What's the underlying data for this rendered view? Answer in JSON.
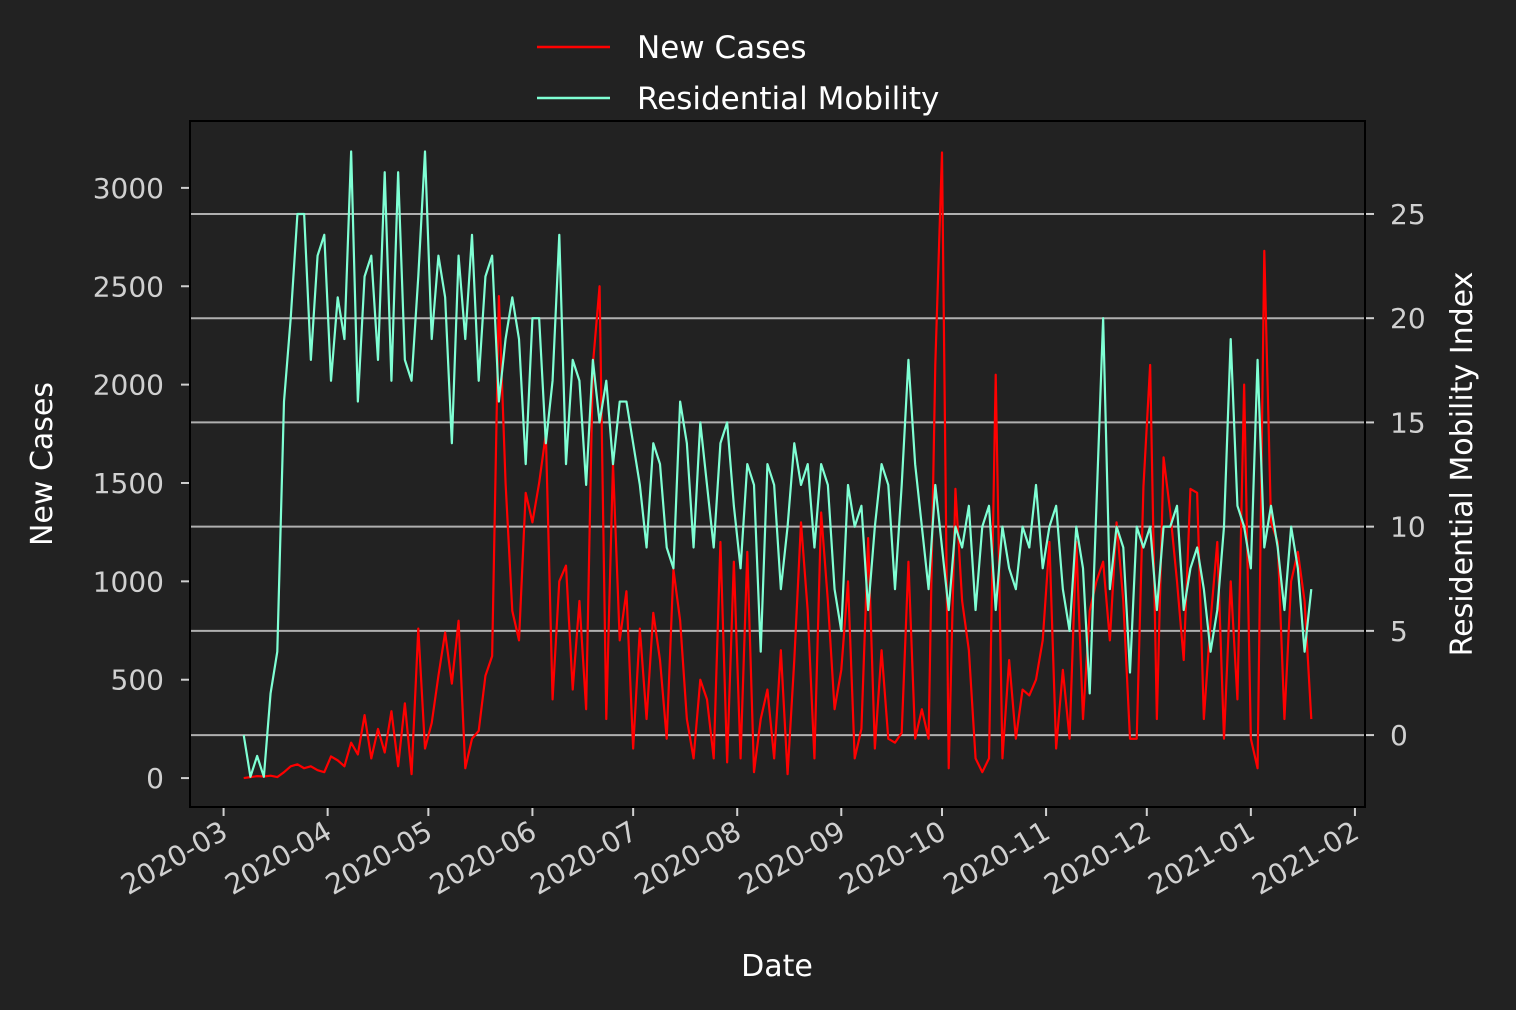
{
  "chart_data": {
    "type": "line",
    "x_label": "Date",
    "y_label": "New Cases",
    "y2_label": "Residential Mobility Index",
    "legend": "upper center",
    "grid": "y2",
    "x": [
      "2020-03-07",
      "2020-03-09",
      "2020-03-11",
      "2020-03-13",
      "2020-03-15",
      "2020-03-17",
      "2020-03-19",
      "2020-03-21",
      "2020-03-23",
      "2020-03-25",
      "2020-03-27",
      "2020-03-29",
      "2020-03-31",
      "2020-04-02",
      "2020-04-04",
      "2020-04-06",
      "2020-04-08",
      "2020-04-10",
      "2020-04-12",
      "2020-04-14",
      "2020-04-16",
      "2020-04-18",
      "2020-04-20",
      "2020-04-22",
      "2020-04-24",
      "2020-04-26",
      "2020-04-28",
      "2020-04-30",
      "2020-05-02",
      "2020-05-04",
      "2020-05-06",
      "2020-05-08",
      "2020-05-10",
      "2020-05-12",
      "2020-05-14",
      "2020-05-16",
      "2020-05-18",
      "2020-05-20",
      "2020-05-22",
      "2020-05-24",
      "2020-05-26",
      "2020-05-28",
      "2020-05-30",
      "2020-06-01",
      "2020-06-03",
      "2020-06-05",
      "2020-06-07",
      "2020-06-09",
      "2020-06-11",
      "2020-06-13",
      "2020-06-15",
      "2020-06-17",
      "2020-06-19",
      "2020-06-21",
      "2020-06-23",
      "2020-06-25",
      "2020-06-27",
      "2020-06-29",
      "2020-07-01",
      "2020-07-03",
      "2020-07-05",
      "2020-07-07",
      "2020-07-09",
      "2020-07-11",
      "2020-07-13",
      "2020-07-15",
      "2020-07-17",
      "2020-07-19",
      "2020-07-21",
      "2020-07-23",
      "2020-07-25",
      "2020-07-27",
      "2020-07-29",
      "2020-07-31",
      "2020-08-02",
      "2020-08-04",
      "2020-08-06",
      "2020-08-08",
      "2020-08-10",
      "2020-08-12",
      "2020-08-14",
      "2020-08-16",
      "2020-08-18",
      "2020-08-20",
      "2020-08-22",
      "2020-08-24",
      "2020-08-26",
      "2020-08-28",
      "2020-08-30",
      "2020-09-01",
      "2020-09-03",
      "2020-09-05",
      "2020-09-07",
      "2020-09-09",
      "2020-09-11",
      "2020-09-13",
      "2020-09-15",
      "2020-09-17",
      "2020-09-19",
      "2020-09-21",
      "2020-09-23",
      "2020-09-25",
      "2020-09-27",
      "2020-09-29",
      "2020-10-01",
      "2020-10-03",
      "2020-10-05",
      "2020-10-07",
      "2020-10-09",
      "2020-10-11",
      "2020-10-13",
      "2020-10-15",
      "2020-10-17",
      "2020-10-19",
      "2020-10-21",
      "2020-10-23",
      "2020-10-25",
      "2020-10-27",
      "2020-10-29",
      "2020-10-31",
      "2020-11-02",
      "2020-11-04",
      "2020-11-06",
      "2020-11-08",
      "2020-11-10",
      "2020-11-12",
      "2020-11-14",
      "2020-11-16",
      "2020-11-18",
      "2020-11-20",
      "2020-11-22",
      "2020-11-24",
      "2020-11-26",
      "2020-11-28",
      "2020-11-30",
      "2020-12-02",
      "2020-12-04",
      "2020-12-06",
      "2020-12-08",
      "2020-12-10",
      "2020-12-12",
      "2020-12-14",
      "2020-12-16",
      "2020-12-18",
      "2020-12-20",
      "2020-12-22",
      "2020-12-24",
      "2020-12-26",
      "2020-12-28",
      "2020-12-30",
      "2021-01-01",
      "2021-01-03",
      "2021-01-05",
      "2021-01-07",
      "2021-01-09",
      "2021-01-11",
      "2021-01-13",
      "2021-01-15",
      "2021-01-17",
      "2021-01-19"
    ],
    "series": [
      {
        "name": "New Cases",
        "color": "#ff0000",
        "axis": "y",
        "values": [
          0,
          5,
          10,
          8,
          12,
          5,
          30,
          60,
          70,
          50,
          60,
          40,
          30,
          110,
          90,
          60,
          180,
          120,
          320,
          100,
          250,
          130,
          340,
          60,
          380,
          20,
          760,
          150,
          280,
          520,
          740,
          480,
          800,
          50,
          200,
          240,
          520,
          620,
          2450,
          1500,
          850,
          700,
          1450,
          1300,
          1500,
          1750,
          400,
          1000,
          1080,
          450,
          900,
          350,
          2100,
          2500,
          300,
          1600,
          700,
          950,
          150,
          760,
          300,
          840,
          600,
          200,
          1060,
          800,
          300,
          100,
          500,
          400,
          100,
          1200,
          80,
          1100,
          100,
          1150,
          30,
          300,
          450,
          100,
          650,
          20,
          600,
          1300,
          850,
          100,
          1350,
          900,
          350,
          550,
          1000,
          100,
          250,
          1220,
          150,
          650,
          200,
          180,
          230,
          1100,
          200,
          350,
          200,
          2100,
          3180,
          50,
          1470,
          900,
          650,
          100,
          30,
          100,
          2050,
          100,
          600,
          200,
          450,
          420,
          500,
          700,
          1200,
          150,
          550,
          200,
          1200,
          300,
          850,
          1000,
          1100,
          700,
          1300,
          900,
          200,
          200,
          1480,
          2100,
          300,
          1630,
          1350,
          1000,
          600,
          1470,
          1450,
          300,
          800,
          1200,
          200,
          1000,
          400,
          2000,
          200,
          50,
          2680,
          1300,
          1200,
          300,
          1000,
          1150,
          900,
          300
        ]
      },
      {
        "name": "Residential Mobility",
        "color": "#7fffd4",
        "axis": "y2",
        "values": [
          0,
          -2,
          -1,
          -2,
          2,
          4,
          16,
          20,
          25,
          25,
          18,
          23,
          24,
          17,
          21,
          19,
          28,
          16,
          22,
          23,
          18,
          27,
          17,
          27,
          18,
          17,
          22,
          28,
          19,
          23,
          21,
          14,
          23,
          19,
          24,
          17,
          22,
          23,
          16,
          19,
          21,
          19,
          13,
          20,
          20,
          14,
          17,
          24,
          13,
          18,
          17,
          12,
          18,
          15,
          17,
          13,
          16,
          16,
          14,
          12,
          9,
          14,
          13,
          9,
          8,
          16,
          14,
          9,
          15,
          12,
          9,
          14,
          15,
          11,
          8,
          13,
          12,
          4,
          13,
          12,
          7,
          10,
          14,
          12,
          13,
          9,
          13,
          12,
          7,
          5,
          12,
          10,
          11,
          6,
          10,
          13,
          12,
          7,
          12,
          18,
          13,
          10,
          7,
          12,
          9,
          6,
          10,
          9,
          11,
          6,
          10,
          11,
          6,
          10,
          8,
          7,
          10,
          9,
          12,
          8,
          10,
          11,
          7,
          5,
          10,
          8,
          2,
          11,
          20,
          7,
          10,
          9,
          3,
          10,
          9,
          10,
          6,
          10,
          10,
          11,
          6,
          8,
          9,
          7,
          4,
          6,
          10,
          19,
          11,
          10,
          8,
          18,
          9,
          11,
          9,
          6,
          10,
          8,
          4,
          7
        ]
      }
    ],
    "xlim": [
      "2020-02-20",
      "2021-02-04"
    ],
    "xticks": [
      {
        "value": "2020-03-01",
        "label": "2020-03"
      },
      {
        "value": "2020-04-01",
        "label": "2020-04"
      },
      {
        "value": "2020-05-01",
        "label": "2020-05"
      },
      {
        "value": "2020-06-01",
        "label": "2020-06"
      },
      {
        "value": "2020-07-01",
        "label": "2020-07"
      },
      {
        "value": "2020-08-01",
        "label": "2020-08"
      },
      {
        "value": "2020-09-01",
        "label": "2020-09"
      },
      {
        "value": "2020-10-01",
        "label": "2020-10"
      },
      {
        "value": "2020-11-01",
        "label": "2020-11"
      },
      {
        "value": "2020-12-01",
        "label": "2020-12"
      },
      {
        "value": "2021-01-01",
        "label": "2021-01"
      },
      {
        "value": "2021-02-01",
        "label": "2021-02"
      }
    ],
    "ylim": [
      -147,
      3340
    ],
    "yticks": [
      0,
      500,
      1000,
      1500,
      2000,
      2500,
      3000
    ],
    "y2lim": [
      -3.45,
      29.46
    ],
    "y2ticks": [
      0,
      5,
      10,
      15,
      20,
      25
    ]
  }
}
